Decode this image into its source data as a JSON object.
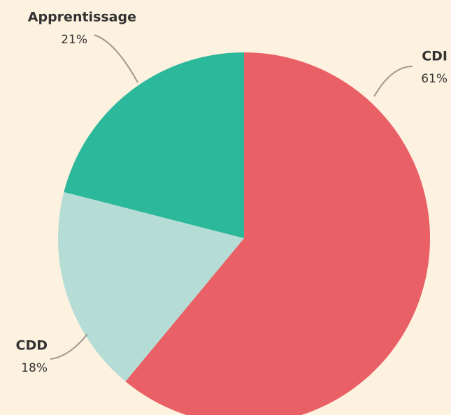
{
  "chart_data": {
    "type": "pie",
    "categories": [
      "CDI",
      "CDD",
      "Apprentissage"
    ],
    "values": [
      61,
      18,
      21
    ],
    "value_labels": [
      "61%",
      "18%",
      "21%"
    ],
    "colors": [
      "#e96066",
      "#b5ddd5",
      "#2bb89b"
    ]
  }
}
